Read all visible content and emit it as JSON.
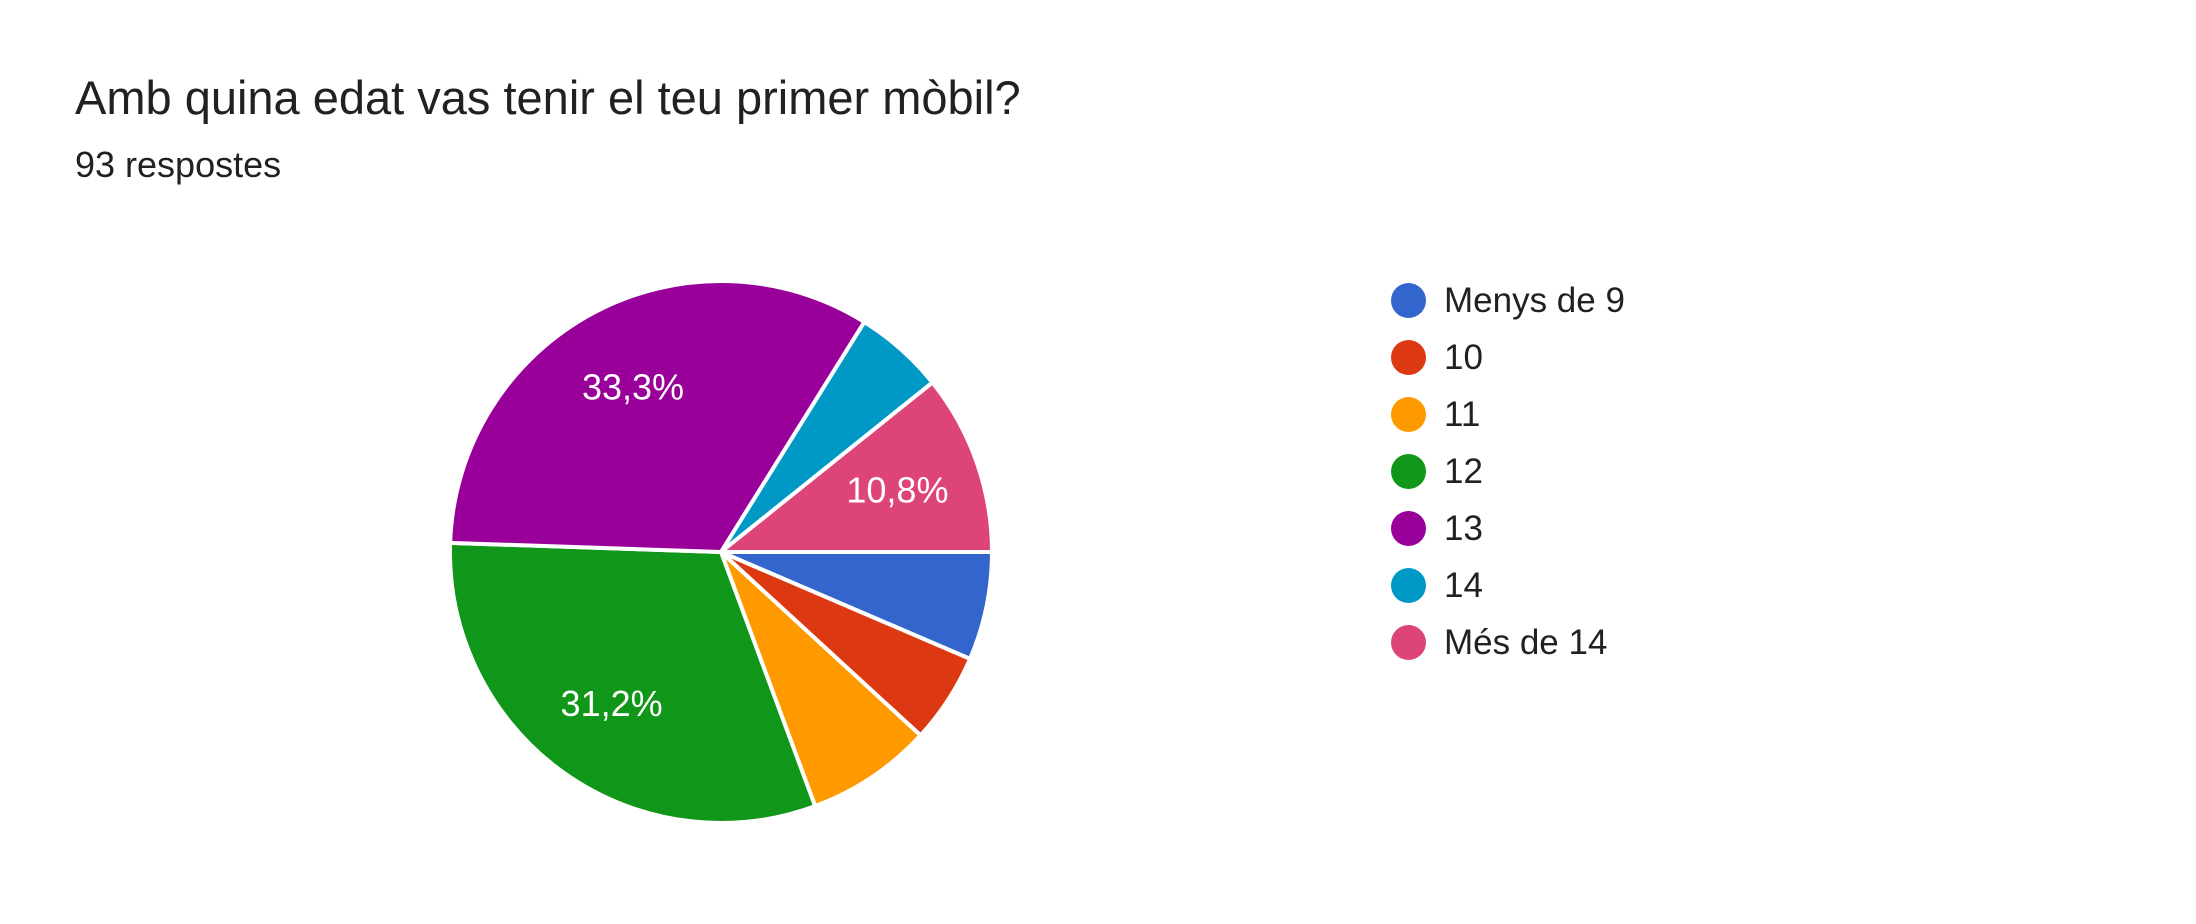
{
  "header": {
    "title": "Amb quina edat vas tenir el teu primer mòbil?",
    "subtitle": "93 respostes"
  },
  "chart_data": {
    "type": "pie",
    "title": "Amb quina edat vas tenir el teu primer mòbil?",
    "subtitle": "93 respostes",
    "total_responses": 93,
    "unit": "respostes",
    "start_angle_deg": 0,
    "direction": "clockwise",
    "legend_position": "right",
    "categories": [
      "Menys de 9",
      "10",
      "11",
      "12",
      "13",
      "14",
      "Més de 14"
    ],
    "series": [
      {
        "name": "respostes",
        "values": [
          6,
          5,
          7,
          29,
          31,
          5,
          10
        ]
      }
    ],
    "slices": [
      {
        "label": "Menys de 9",
        "value": 6,
        "percent": 6.5,
        "percent_label": "",
        "color": "#3366CC"
      },
      {
        "label": "10",
        "value": 5,
        "percent": 5.4,
        "percent_label": "",
        "color": "#DC3912"
      },
      {
        "label": "11",
        "value": 7,
        "percent": 7.5,
        "percent_label": "",
        "color": "#FF9900"
      },
      {
        "label": "12",
        "value": 29,
        "percent": 31.2,
        "percent_label": "31,2%",
        "color": "#109618"
      },
      {
        "label": "13",
        "value": 31,
        "percent": 33.3,
        "percent_label": "33,3%",
        "color": "#990099"
      },
      {
        "label": "14",
        "value": 5,
        "percent": 5.4,
        "percent_label": "",
        "color": "#0099C6"
      },
      {
        "label": "Més de 14",
        "value": 10,
        "percent": 10.8,
        "percent_label": "10,8%",
        "color": "#DD4477"
      }
    ],
    "colors": [
      "#3366CC",
      "#DC3912",
      "#FF9900",
      "#109618",
      "#990099",
      "#0099C6",
      "#DD4477"
    ],
    "label_text_color": "#ffffff",
    "text_color": "#212121"
  }
}
